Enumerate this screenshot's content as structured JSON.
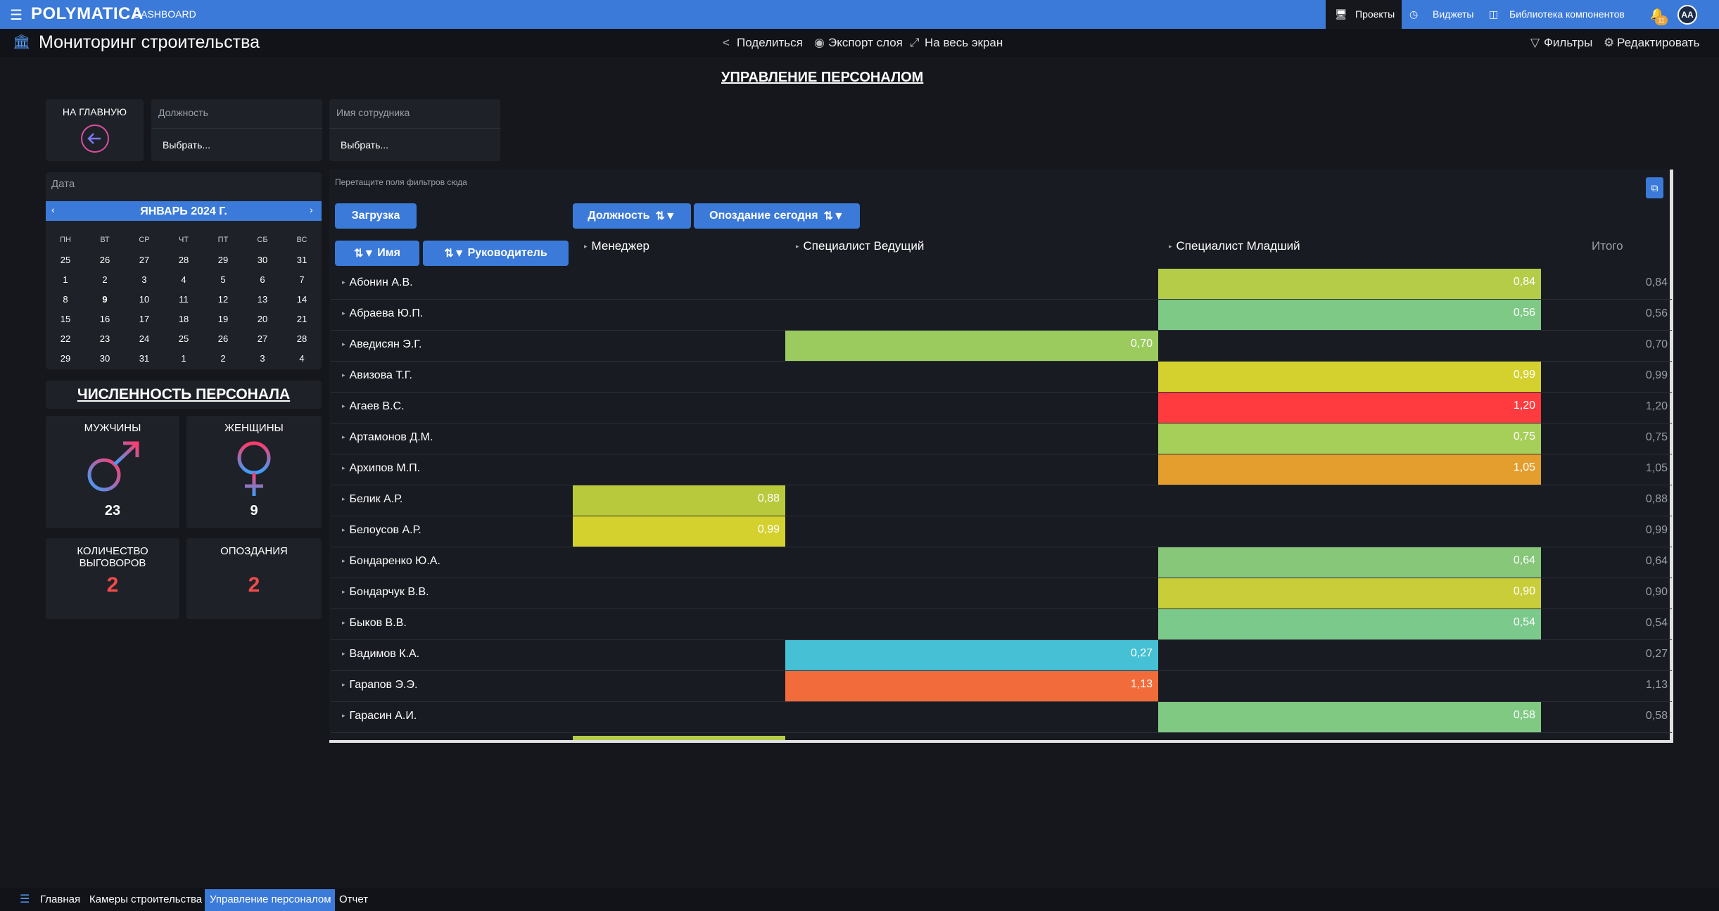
{
  "topbar": {
    "logo": "POLYMATICA",
    "section": "DASHBOARD",
    "nav": [
      "Проекты",
      "Виджеты",
      "Библиотека компонентов"
    ],
    "notifications": "11",
    "avatar": "AA"
  },
  "subbar": {
    "title": "Мониторинг строительства",
    "share": "Поделиться",
    "export": "Экспорт слоя",
    "fullscreen": "На весь экран",
    "filters": "Фильтры",
    "edit": "Редактировать"
  },
  "page_heading": "УПРАВЛЕНИЕ ПЕРСОНАЛОМ",
  "home_card": {
    "label": "НА ГЛАВНУЮ"
  },
  "filters": [
    {
      "label": "Должность",
      "value": "Выбрать..."
    },
    {
      "label": "Имя сотрудника",
      "value": "Выбрать..."
    }
  ],
  "calendar": {
    "label": "Дата",
    "title": "ЯНВАРЬ 2024 Г.",
    "dow": [
      "ПН",
      "ВТ",
      "СР",
      "ЧТ",
      "ПТ",
      "СБ",
      "ВС"
    ],
    "weeks": [
      [
        "25",
        "26",
        "27",
        "28",
        "29",
        "30",
        "31"
      ],
      [
        "1",
        "2",
        "3",
        "4",
        "5",
        "6",
        "7"
      ],
      [
        "8",
        "9",
        "10",
        "11",
        "12",
        "13",
        "14"
      ],
      [
        "15",
        "16",
        "17",
        "18",
        "19",
        "20",
        "21"
      ],
      [
        "22",
        "23",
        "24",
        "25",
        "26",
        "27",
        "28"
      ],
      [
        "29",
        "30",
        "31",
        "1",
        "2",
        "3",
        "4"
      ]
    ]
  },
  "headcount": {
    "title": "ЧИСЛЕННОСТЬ ПЕРСОНАЛА",
    "men_label": "МУЖЧИНЫ",
    "men_value": "23",
    "women_label": "ЖЕНЩИНЫ",
    "women_value": "9",
    "reprimands_label": "КОЛИЧЕСТВО ВЫГОВОРОВ",
    "reprimands_value": "2",
    "late_label": "ОПОЗДАНИЯ",
    "late_value": "2"
  },
  "pivot": {
    "drop_hint": "Перетащите поля фильтров сюда",
    "fields": {
      "load": "Загрузка",
      "position": "Должность",
      "late_today": "Опоздание сегодня",
      "name": "Имя",
      "manager": "Руководитель"
    },
    "columns": [
      "Менеджер",
      "Специалист Ведущий",
      "Специалист Младший"
    ],
    "total_label": "Итого",
    "colors": {
      "c084": "#b5cc48",
      "c056": "#7ec986",
      "c070": "#9bcb5f",
      "c099": "#d4d12f",
      "c120": "#ff3b3f",
      "c075": "#a6cf5a",
      "c105": "#e39e2d",
      "c088": "#b8c93b",
      "c064": "#86c77a",
      "c090": "#c9cd3a",
      "c054": "#7bc98b",
      "c027": "#45c0d4",
      "c113": "#f26b3a",
      "c058": "#80c983"
    },
    "rows": [
      {
        "name": "Абонин А.В.",
        "col": 2,
        "value": "0,84",
        "color": "#b5cc48",
        "total": "0,84"
      },
      {
        "name": "Абраева Ю.П.",
        "col": 2,
        "value": "0,56",
        "color": "#7ec986",
        "total": "0,56"
      },
      {
        "name": "Аведисян Э.Г.",
        "col": 1,
        "value": "0,70",
        "color": "#9bcb5f",
        "total": "0,70"
      },
      {
        "name": "Авизова Т.Г.",
        "col": 2,
        "value": "0,99",
        "color": "#d4d12f",
        "total": "0,99"
      },
      {
        "name": "Агаев В.С.",
        "col": 2,
        "value": "1,20",
        "color": "#ff3b3f",
        "total": "1,20"
      },
      {
        "name": "Артамонов Д.М.",
        "col": 2,
        "value": "0,75",
        "color": "#a6cf5a",
        "total": "0,75"
      },
      {
        "name": "Архипов М.П.",
        "col": 2,
        "value": "1,05",
        "color": "#e39e2d",
        "total": "1,05"
      },
      {
        "name": "Белик А.Р.",
        "col": 0,
        "value": "0,88",
        "color": "#b8c93b",
        "total": "0,88"
      },
      {
        "name": "Белоусов А.Р.",
        "col": 0,
        "value": "0,99",
        "color": "#d4d12f",
        "total": "0,99"
      },
      {
        "name": "Бондаренко Ю.А.",
        "col": 2,
        "value": "0,64",
        "color": "#86c77a",
        "total": "0,64"
      },
      {
        "name": "Бондарчук В.В.",
        "col": 2,
        "value": "0,90",
        "color": "#c9cd3a",
        "total": "0,90"
      },
      {
        "name": "Быков В.В.",
        "col": 2,
        "value": "0,54",
        "color": "#7bc98b",
        "total": "0,54"
      },
      {
        "name": "Вадимов К.А.",
        "col": 1,
        "value": "0,27",
        "color": "#45c0d4",
        "total": "0,27"
      },
      {
        "name": "Гарапов Э.Э.",
        "col": 1,
        "value": "1,13",
        "color": "#f26b3a",
        "total": "1,13"
      },
      {
        "name": "Гарасин А.И.",
        "col": 2,
        "value": "0,58",
        "color": "#80c983",
        "total": "0,58"
      }
    ]
  },
  "footer": {
    "tabs": [
      "Главная",
      "Камеры строительства",
      "Управление персоналом",
      "Отчет"
    ]
  }
}
